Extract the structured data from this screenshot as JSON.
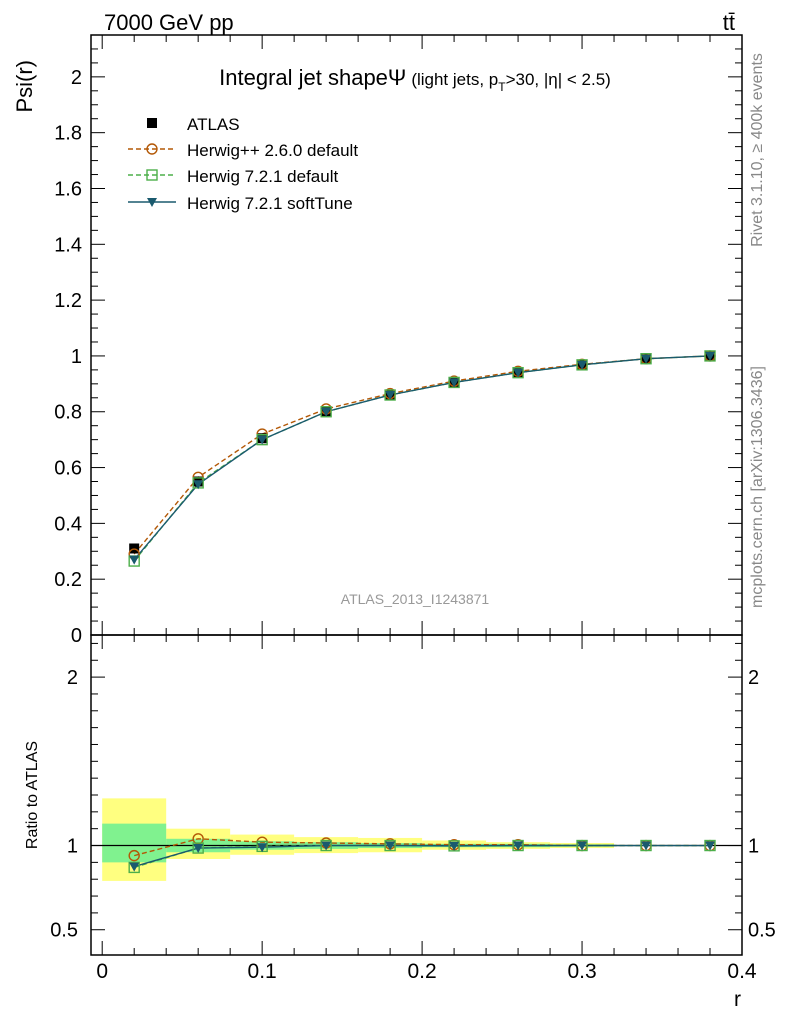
{
  "header": {
    "energy_label": "7000 GeV pp",
    "process_label": "tt̄"
  },
  "side_labels": {
    "rivet": "Rivet 3.1.10, ≥ 400k events",
    "mcplots": "mcplots.cern.ch [arXiv:1306.3436]"
  },
  "watermark": "ATLAS_2013_I1243871",
  "colors": {
    "atlas": "#000000",
    "herwigpp": "#b35806",
    "herwig721": "#4daf4a",
    "softtune": "#1a5a6e",
    "band_inner": "#80f28f",
    "band_outer": "#ffff80"
  },
  "chart_data": {
    "type": "line",
    "title_main": "Integral jet shape",
    "title_symbol": "Ψ",
    "title_detail": "(light jets, p",
    "title_sub": "T",
    "title_tail": ">30, |η| < 2.5)",
    "ylabel": "Psi(r)",
    "ratio_ylabel": "Ratio to ATLAS",
    "xlabel": "r",
    "xlim": [
      -0.007,
      0.4
    ],
    "ylim": [
      0,
      2.15
    ],
    "ratio_ylim": [
      0.35,
      2.25
    ],
    "x_ticks": [
      "0",
      "0.1",
      "0.2",
      "0.3",
      "0.4"
    ],
    "y_ticks": [
      "0",
      "0.2",
      "0.4",
      "0.6",
      "0.8",
      "1",
      "1.2",
      "1.4",
      "1.6",
      "1.8",
      "2"
    ],
    "ratio_ticks": [
      "0.5",
      "1",
      "2"
    ],
    "x": [
      0.02,
      0.06,
      0.1,
      0.14,
      0.18,
      0.22,
      0.26,
      0.3,
      0.34,
      0.38
    ],
    "bin_edges": [
      0.0,
      0.04,
      0.08,
      0.12,
      0.16,
      0.2,
      0.24,
      0.28,
      0.32,
      0.36,
      0.4
    ],
    "band_inner": [
      [
        0.9,
        1.13
      ],
      [
        0.96,
        1.04
      ],
      [
        0.975,
        1.025
      ],
      [
        0.98,
        1.02
      ],
      [
        0.985,
        1.015
      ],
      [
        0.99,
        1.01
      ],
      [
        0.99,
        1.01
      ],
      [
        0.993,
        1.007
      ],
      [
        1.0,
        1.0
      ],
      [
        1.0,
        1.0
      ]
    ],
    "band_outer": [
      [
        0.79,
        1.28
      ],
      [
        0.92,
        1.1
      ],
      [
        0.945,
        1.065
      ],
      [
        0.955,
        1.05
      ],
      [
        0.96,
        1.045
      ],
      [
        0.975,
        1.03
      ],
      [
        0.98,
        1.02
      ],
      [
        0.985,
        1.015
      ],
      [
        1.0,
        1.0
      ],
      [
        1.0,
        1.0
      ]
    ],
    "series": [
      {
        "name": "ATLAS",
        "key": "atlas",
        "marker": "square-filled",
        "dashed": false,
        "values": [
          0.31,
          0.55,
          0.705,
          0.8,
          0.86,
          0.905,
          0.94,
          0.968,
          0.99,
          1.0
        ],
        "ratio": [
          1,
          1,
          1,
          1,
          1,
          1,
          1,
          1,
          1,
          1
        ]
      },
      {
        "name": "Herwig++ 2.6.0 default",
        "key": "herwigpp",
        "marker": "circle-open",
        "dashed": true,
        "values": [
          0.29,
          0.565,
          0.72,
          0.81,
          0.865,
          0.91,
          0.945,
          0.97,
          0.99,
          1.0
        ],
        "ratio": [
          0.94,
          1.04,
          1.02,
          1.015,
          1.01,
          1.005,
          1.005,
          1.0,
          1.0,
          1.0
        ]
      },
      {
        "name": "Herwig 7.2.1 default",
        "key": "herwig721",
        "marker": "square-open",
        "dashed": true,
        "values": [
          0.265,
          0.545,
          0.7,
          0.8,
          0.86,
          0.905,
          0.94,
          0.968,
          0.99,
          1.0
        ],
        "ratio": [
          0.87,
          0.985,
          0.995,
          1.0,
          1.0,
          0.998,
          1.0,
          1.0,
          1.0,
          1.0
        ]
      },
      {
        "name": "Herwig 7.2.1 softTune",
        "key": "softtune",
        "marker": "triangle-down",
        "dashed": false,
        "values": [
          0.27,
          0.54,
          0.7,
          0.8,
          0.86,
          0.905,
          0.94,
          0.968,
          0.99,
          1.0
        ],
        "ratio": [
          0.875,
          0.985,
          0.99,
          1.0,
          1.0,
          0.998,
          1.0,
          1.0,
          1.0,
          1.0
        ]
      }
    ]
  }
}
